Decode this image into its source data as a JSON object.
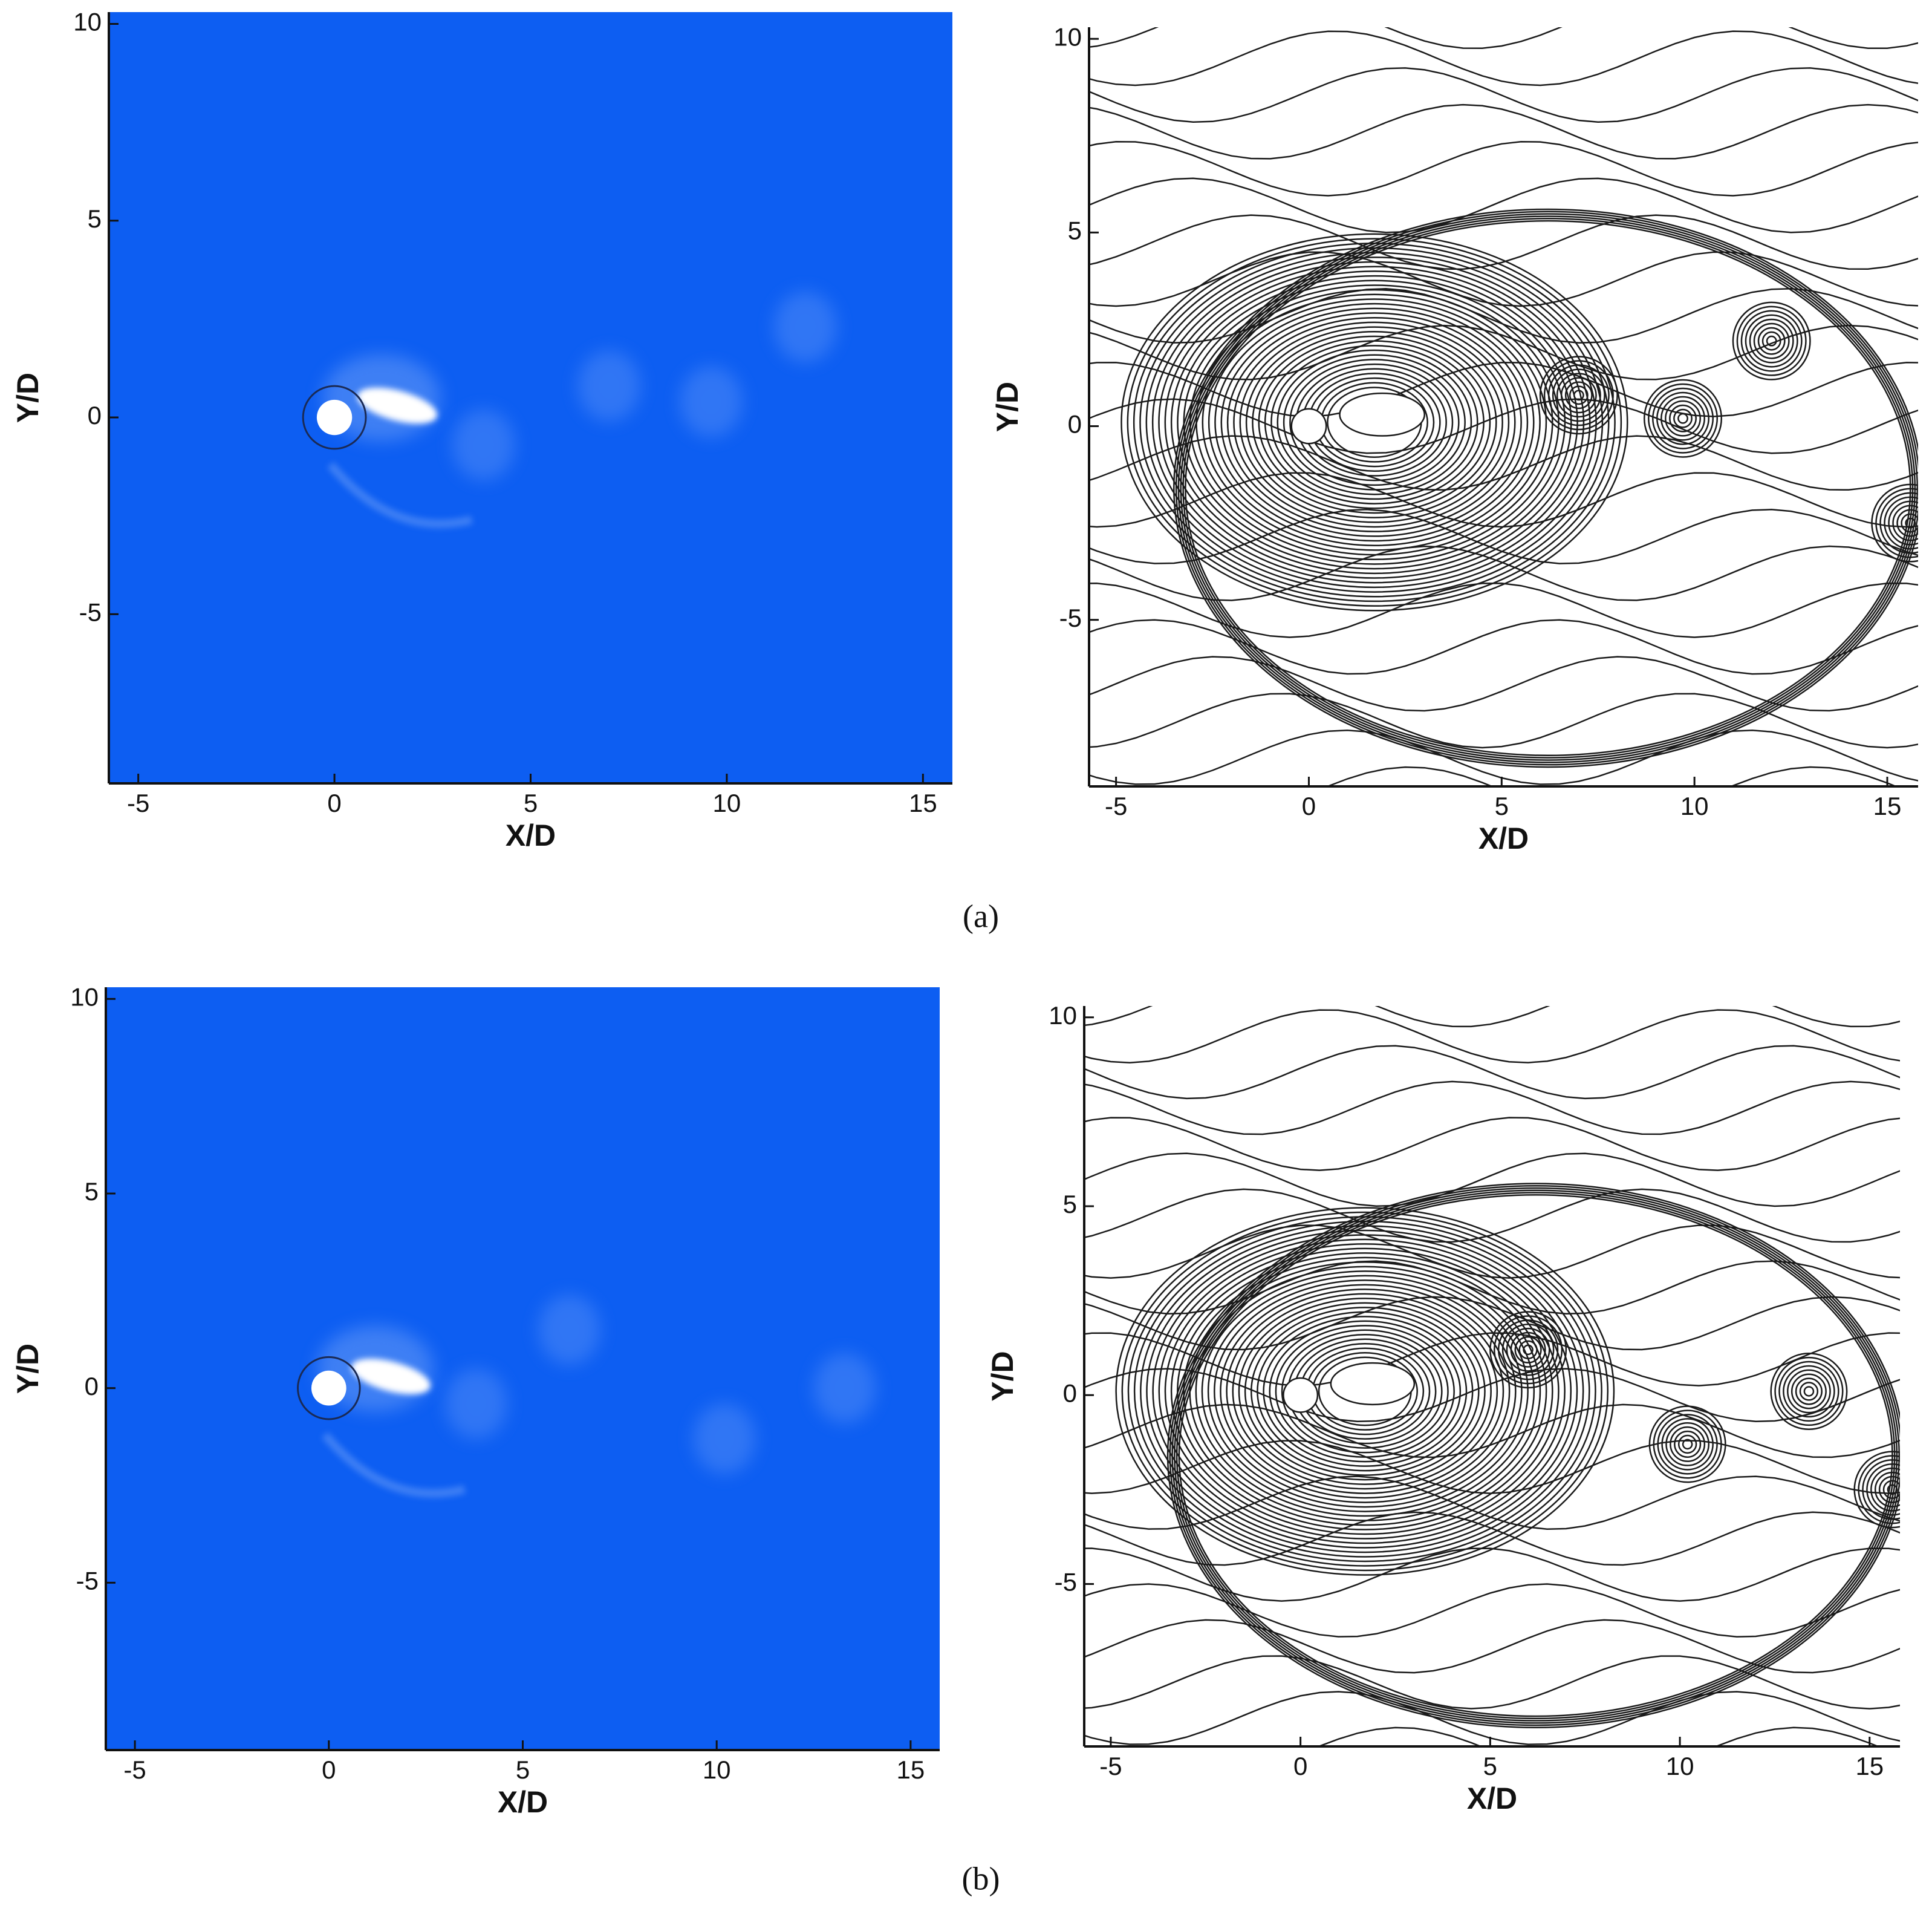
{
  "chart_data": [
    {
      "type": "contourf",
      "color": "#0d5ef2",
      "x_label": "X/D",
      "y_label": "Y/D",
      "xlim": [
        -5.75,
        15.75
      ],
      "ylim": [
        -9.3,
        10.3
      ],
      "xticks": [
        -5,
        0,
        5,
        10,
        15
      ],
      "yticks": [
        -5,
        0,
        5,
        10
      ]
    },
    {
      "type": "contour",
      "color": "#1a1a1a",
      "x_label": "X/D",
      "y_label": "Y/D",
      "xlim": [
        -5.7,
        15.8
      ],
      "ylim": [
        -9.3,
        10.3
      ],
      "xticks": [
        -5,
        0,
        5,
        10,
        15
      ],
      "yticks": [
        -5,
        0,
        5,
        10
      ]
    },
    {
      "type": "contourf",
      "color": "#0d5ef2",
      "x_label": "X/D",
      "y_label": "Y/D",
      "xlim": [
        -5.75,
        15.75
      ],
      "ylim": [
        -9.3,
        10.3
      ],
      "xticks": [
        -5,
        0,
        5,
        10,
        15
      ],
      "yticks": [
        -5,
        0,
        5,
        10
      ]
    },
    {
      "type": "contour",
      "color": "#1a1a1a",
      "x_label": "X/D",
      "y_label": "Y/D",
      "xlim": [
        -5.7,
        15.8
      ],
      "ylim": [
        -9.3,
        10.3
      ],
      "xticks": [
        -5,
        0,
        5,
        10,
        15
      ],
      "yticks": [
        -5,
        0,
        5,
        10
      ]
    }
  ],
  "captions": [
    "(a)",
    "(b)"
  ]
}
